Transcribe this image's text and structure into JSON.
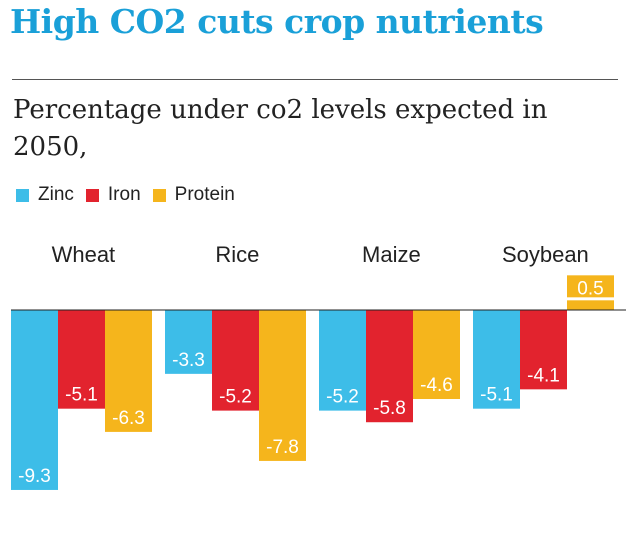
{
  "title": "High CO2 cuts crop nutrients",
  "subtitle": "Percentage under co2 levels expected in 2050,",
  "legend": [
    {
      "label": "Zinc",
      "color": "#3dbde8"
    },
    {
      "label": "Iron",
      "color": "#e2232e"
    },
    {
      "label": "Protein",
      "color": "#f5b51c"
    }
  ],
  "chart_data": {
    "type": "bar",
    "categories": [
      "Wheat",
      "Rice",
      "Maize",
      "Soybean"
    ],
    "series": [
      {
        "name": "Zinc",
        "color": "#3dbde8",
        "values": [
          -9.3,
          -3.3,
          -5.2,
          -5.1
        ]
      },
      {
        "name": "Iron",
        "color": "#e2232e",
        "values": [
          -5.1,
          -5.2,
          -5.8,
          -4.1
        ]
      },
      {
        "name": "Protein",
        "color": "#f5b51c",
        "values": [
          -6.3,
          -7.8,
          -4.6,
          0.5
        ]
      }
    ],
    "value_labels": [
      [
        "-9.3",
        "-3.3",
        "-5.2",
        "-5.1"
      ],
      [
        "-5.1",
        "-5.2",
        "-5.8",
        "-4.1"
      ],
      [
        "-6.3",
        "-7.8",
        "-4.6",
        "0.5"
      ]
    ],
    "ylim": [
      -9.3,
      0.5
    ],
    "xlabel": "",
    "ylabel": "",
    "grid": false,
    "legend_position": "top-left"
  }
}
